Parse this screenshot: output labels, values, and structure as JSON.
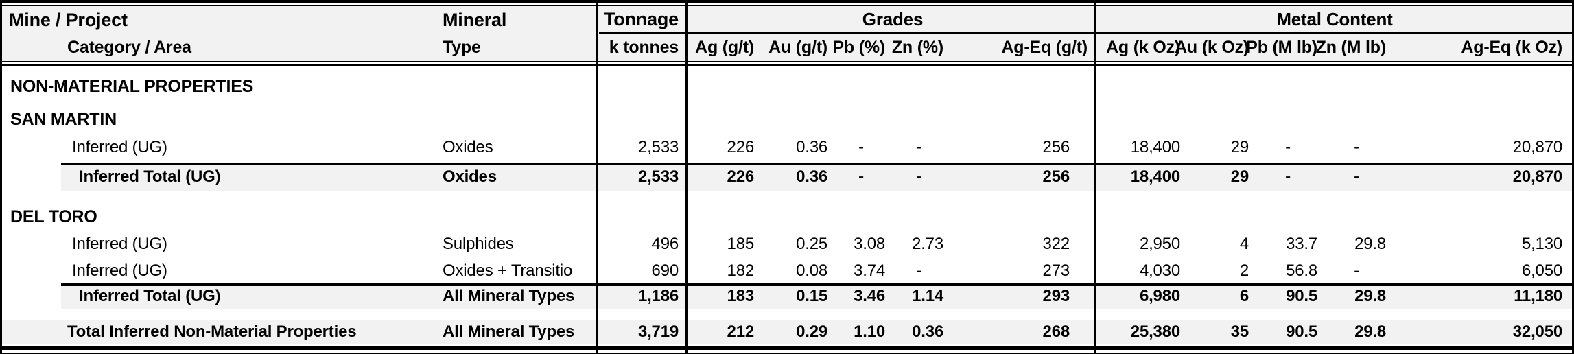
{
  "colors": {
    "header_bg": "#f2f2f2",
    "total_row_bg": "#f2f2f2",
    "border": "#000000",
    "text": "#000000",
    "body_bg": "#ffffff"
  },
  "header": {
    "mine_project": "Mine / Project",
    "category_area": "Category / Area",
    "mineral": "Mineral",
    "type": "Type",
    "tonnage": "Tonnage",
    "tonnage_units": "k tonnes",
    "grades_group": "Grades",
    "grade_cols": [
      "Ag (g/t)",
      "Au (g/t)",
      "Pb (%)",
      "Zn (%)",
      "Ag-Eq (g/t)"
    ],
    "metal_group": "Metal Content",
    "metal_cols": [
      "Ag (k Oz)",
      "Au (k Oz)",
      "Pb (M lb)",
      "Zn (M lb)",
      "Ag-Eq (k Oz)"
    ]
  },
  "rows": [
    {
      "type": "section",
      "label": "NON-MATERIAL PROPERTIES"
    },
    {
      "type": "section",
      "label": "SAN MARTIN"
    },
    {
      "type": "data",
      "category": "Inferred (UG)",
      "mineral": "Oxides",
      "tonnage": "2,533",
      "grades": [
        "226",
        "0.36",
        "-",
        "-",
        "256"
      ],
      "metal": [
        "18,400",
        "29",
        "-",
        "-",
        "20,870"
      ]
    },
    {
      "type": "total",
      "category": "Inferred Total (UG)",
      "mineral": "Oxides",
      "tonnage": "2,533",
      "grades": [
        "226",
        "0.36",
        "-",
        "-",
        "256"
      ],
      "metal": [
        "18,400",
        "29",
        "-",
        "-",
        "20,870"
      ]
    },
    {
      "type": "section",
      "label": "DEL TORO"
    },
    {
      "type": "data",
      "category": "Inferred (UG)",
      "mineral": "Sulphides",
      "tonnage": "496",
      "grades": [
        "185",
        "0.25",
        "3.08",
        "2.73",
        "322"
      ],
      "metal": [
        "2,950",
        "4",
        "33.7",
        "29.8",
        "5,130"
      ]
    },
    {
      "type": "data",
      "category": "Inferred (UG)",
      "mineral": "Oxides + Transitio",
      "tonnage": "690",
      "grades": [
        "182",
        "0.08",
        "3.74",
        "-",
        "273"
      ],
      "metal": [
        "4,030",
        "2",
        "56.8",
        "-",
        "6,050"
      ]
    },
    {
      "type": "total",
      "category": "Inferred Total (UG)",
      "mineral": "All Mineral Types",
      "tonnage": "1,186",
      "grades": [
        "183",
        "0.15",
        "3.46",
        "1.14",
        "293"
      ],
      "metal": [
        "6,980",
        "6",
        "90.5",
        "29.8",
        "11,180"
      ]
    },
    {
      "type": "grand_total",
      "category": "Total Inferred Non-Material Properties",
      "mineral": "All Mineral Types",
      "tonnage": "3,719",
      "grades": [
        "212",
        "0.29",
        "1.10",
        "0.36",
        "268"
      ],
      "metal": [
        "25,380",
        "35",
        "90.5",
        "29.8",
        "32,050"
      ]
    }
  ]
}
